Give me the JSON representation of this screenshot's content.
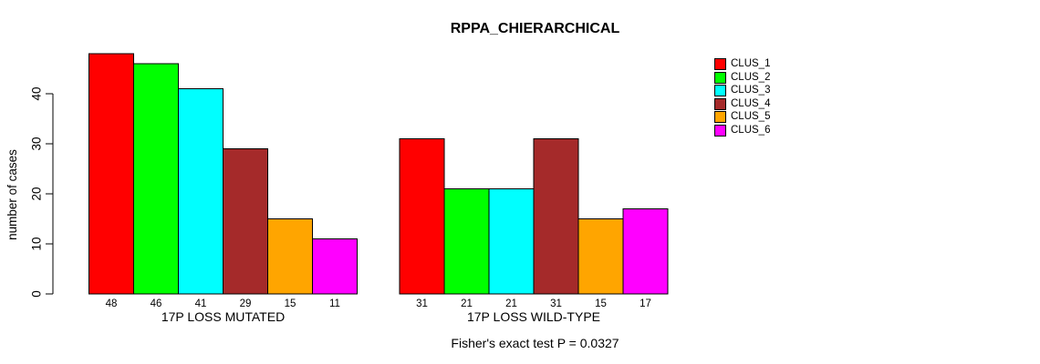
{
  "chart_data": {
    "type": "bar",
    "title": "RPPA_CHIERARCHICAL",
    "ylabel": "number of cases",
    "xlabel": "",
    "ylim": [
      0,
      48
    ],
    "yticks": [
      0,
      10,
      20,
      30,
      40
    ],
    "grid": false,
    "legend_position": "top-right",
    "series_labels": [
      "CLUS_1",
      "CLUS_2",
      "CLUS_3",
      "CLUS_4",
      "CLUS_5",
      "CLUS_6"
    ],
    "series_colors": [
      "#FF0000",
      "#00FF00",
      "#00FFFF",
      "#A52A2A",
      "#FFA500",
      "#FF00FF"
    ],
    "groups": [
      {
        "label": "17P LOSS MUTATED",
        "values": [
          48,
          46,
          41,
          29,
          15,
          11
        ]
      },
      {
        "label": "17P LOSS WILD-TYPE",
        "values": [
          31,
          21,
          21,
          31,
          15,
          17
        ]
      }
    ],
    "annotation": "Fisher's exact test P = 0.0327"
  }
}
